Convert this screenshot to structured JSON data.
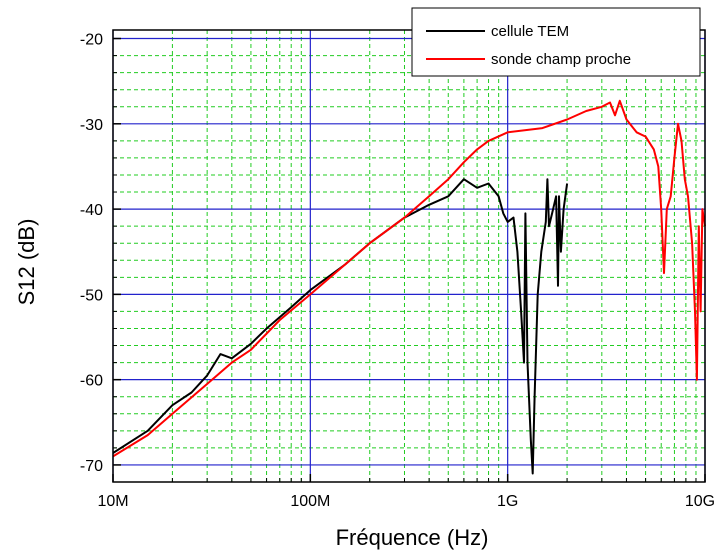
{
  "chart_data": {
    "type": "line",
    "xlabel": "Fréquence (Hz)",
    "ylabel": "S12 (dB)",
    "x_scale": "log",
    "xlim": [
      10000000,
      10000000000
    ],
    "ylim": [
      -72,
      -19
    ],
    "x_ticks": [
      {
        "value": 10000000,
        "label": "10M"
      },
      {
        "value": 100000000,
        "label": "100M"
      },
      {
        "value": 1000000000,
        "label": "1G"
      },
      {
        "value": 10000000000,
        "label": "10G"
      }
    ],
    "y_ticks": [
      {
        "value": -20,
        "label": "-20"
      },
      {
        "value": -30,
        "label": "-30"
      },
      {
        "value": -40,
        "label": "-40"
      },
      {
        "value": -50,
        "label": "-50"
      },
      {
        "value": -60,
        "label": "-60"
      },
      {
        "value": -70,
        "label": "-70"
      }
    ],
    "grid": true,
    "legend_position": "top-right",
    "colors": {
      "major_grid": "#2222cc",
      "minor_grid": "#22cc22"
    },
    "series": [
      {
        "name": "cellule TEM",
        "color": "#000000",
        "points": [
          [
            10000000,
            -68.6
          ],
          [
            15000000,
            -66.0
          ],
          [
            20000000,
            -63.0
          ],
          [
            25000000,
            -61.5
          ],
          [
            30000000,
            -59.5
          ],
          [
            35000000,
            -57.0
          ],
          [
            40000000,
            -57.5
          ],
          [
            50000000,
            -55.8
          ],
          [
            60000000,
            -54.0
          ],
          [
            80000000,
            -51.5
          ],
          [
            100000000,
            -49.5
          ],
          [
            150000000,
            -46.5
          ],
          [
            200000000,
            -44.0
          ],
          [
            300000000,
            -41.0
          ],
          [
            400000000,
            -39.5
          ],
          [
            500000000,
            -38.5
          ],
          [
            600000000,
            -36.5
          ],
          [
            700000000,
            -37.5
          ],
          [
            800000000,
            -37.0
          ],
          [
            900000000,
            -38.5
          ],
          [
            950000000,
            -40.5
          ],
          [
            1000000000,
            -41.5
          ],
          [
            1070000000,
            -41.0
          ],
          [
            1120000000,
            -45.0
          ],
          [
            1170000000,
            -52.0
          ],
          [
            1210000000,
            -58.0
          ],
          [
            1230000000,
            -40.5
          ],
          [
            1260000000,
            -58.0
          ],
          [
            1310000000,
            -67.0
          ],
          [
            1340000000,
            -71.0
          ],
          [
            1370000000,
            -62.0
          ],
          [
            1420000000,
            -50.0
          ],
          [
            1480000000,
            -45.0
          ],
          [
            1560000000,
            -41.5
          ],
          [
            1590000000,
            -36.5
          ],
          [
            1620000000,
            -42.0
          ],
          [
            1680000000,
            -40.5
          ],
          [
            1760000000,
            -38.5
          ],
          [
            1800000000,
            -49.0
          ],
          [
            1820000000,
            -38.5
          ],
          [
            1860000000,
            -45.0
          ],
          [
            1920000000,
            -40.0
          ],
          [
            2000000000,
            -37.0
          ]
        ]
      },
      {
        "name": "sonde champ proche",
        "color": "#ff0000",
        "points": [
          [
            10000000,
            -69.0
          ],
          [
            15000000,
            -66.5
          ],
          [
            20000000,
            -64.0
          ],
          [
            30000000,
            -60.5
          ],
          [
            40000000,
            -58.0
          ],
          [
            50000000,
            -56.5
          ],
          [
            70000000,
            -53.0
          ],
          [
            100000000,
            -50.0
          ],
          [
            150000000,
            -46.5
          ],
          [
            200000000,
            -44.0
          ],
          [
            300000000,
            -41.0
          ],
          [
            400000000,
            -38.5
          ],
          [
            500000000,
            -36.5
          ],
          [
            600000000,
            -34.5
          ],
          [
            700000000,
            -33.0
          ],
          [
            800000000,
            -32.0
          ],
          [
            1000000000,
            -31.0
          ],
          [
            1500000000,
            -30.5
          ],
          [
            2000000000,
            -29.5
          ],
          [
            2500000000,
            -28.5
          ],
          [
            3000000000,
            -28.0
          ],
          [
            3300000000,
            -27.5
          ],
          [
            3500000000,
            -29.0
          ],
          [
            3700000000,
            -27.3
          ],
          [
            4000000000,
            -29.5
          ],
          [
            4500000000,
            -31.0
          ],
          [
            5000000000,
            -31.5
          ],
          [
            5500000000,
            -33.0
          ],
          [
            5800000000,
            -35.0
          ],
          [
            6000000000,
            -40.0
          ],
          [
            6200000000,
            -47.5
          ],
          [
            6400000000,
            -40.0
          ],
          [
            6700000000,
            -38.5
          ],
          [
            7000000000,
            -34.0
          ],
          [
            7300000000,
            -30.0
          ],
          [
            7600000000,
            -32.0
          ],
          [
            7900000000,
            -36.5
          ],
          [
            8200000000,
            -38.5
          ],
          [
            8600000000,
            -44.0
          ],
          [
            8900000000,
            -52.0
          ],
          [
            9100000000,
            -60.0
          ],
          [
            9300000000,
            -42.0
          ],
          [
            9500000000,
            -52.0
          ],
          [
            9700000000,
            -40.0
          ],
          [
            10000000000,
            -42.0
          ]
        ]
      }
    ]
  }
}
